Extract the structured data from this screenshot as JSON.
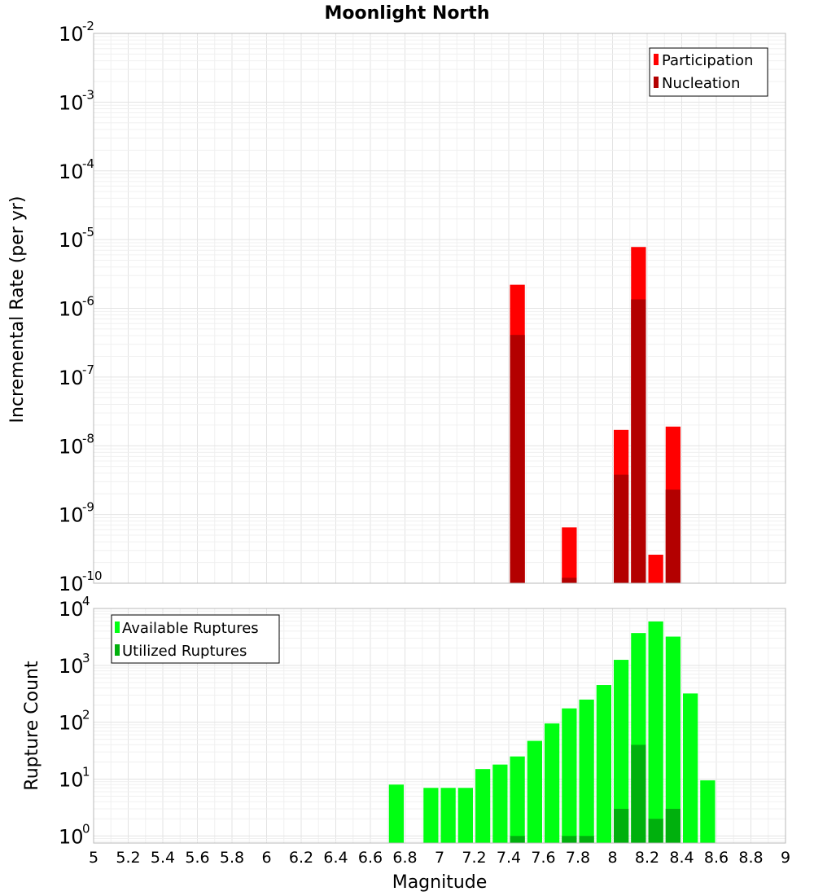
{
  "title": "Moonlight North",
  "x_axis": {
    "label": "Magnitude",
    "tick_labels": [
      "5",
      "5.2",
      "5.4",
      "5.6",
      "5.8",
      "6",
      "6.2",
      "6.4",
      "6.6",
      "6.8",
      "7",
      "7.2",
      "7.4",
      "7.6",
      "7.8",
      "8",
      "8.2",
      "8.4",
      "8.6",
      "8.8",
      "9"
    ],
    "range": [
      5,
      9
    ]
  },
  "colors": {
    "participation": "#ff0000",
    "nucleation": "#b30000",
    "available": "#00ff12",
    "utilized": "#00b00d"
  },
  "chart_data": [
    {
      "type": "bar",
      "title": "Moonlight North",
      "xlabel": "Magnitude",
      "ylabel": "Incremental Rate (per yr)",
      "xlim": [
        5,
        9
      ],
      "ylim": [
        1e-10,
        0.01
      ],
      "yscale": "log",
      "ytick_base": "10",
      "ytick_exponents": [
        "-10",
        "-9",
        "-8",
        "-7",
        "-6",
        "-5",
        "-4",
        "-3",
        "-2"
      ],
      "grid": true,
      "legend_position": "top-right",
      "bin_width": 0.1,
      "series": [
        {
          "name": "Participation",
          "color": "#ff0000",
          "x": [
            7.45,
            7.75,
            8.05,
            8.15,
            8.25,
            8.35
          ],
          "values": [
            2.2e-06,
            6.5e-10,
            1.7e-08,
            7.8e-06,
            2.6e-10,
            1.9e-08
          ]
        },
        {
          "name": "Nucleation",
          "color": "#b30000",
          "x": [
            7.45,
            7.75,
            8.05,
            8.15,
            8.25,
            8.35
          ],
          "values": [
            4.1e-07,
            1.2e-10,
            3.8e-09,
            1.35e-06,
            null,
            2.3e-09
          ]
        }
      ]
    },
    {
      "type": "bar",
      "xlabel": "Magnitude",
      "ylabel": "Rupture Count",
      "xlim": [
        5,
        9
      ],
      "ylim": [
        0.75,
        10000
      ],
      "yscale": "log",
      "ytick_base": "10",
      "ytick_exponents": [
        "0",
        "1",
        "2",
        "3",
        "4"
      ],
      "grid": true,
      "legend_position": "top-left",
      "bin_width": 0.1,
      "series": [
        {
          "name": "Available Ruptures",
          "color": "#00ff12",
          "x": [
            6.75,
            6.95,
            7.05,
            7.15,
            7.25,
            7.35,
            7.45,
            7.55,
            7.65,
            7.75,
            7.85,
            7.95,
            8.05,
            8.15,
            8.25,
            8.35,
            8.45,
            8.55
          ],
          "values": [
            8,
            7,
            7,
            7,
            15,
            18,
            25,
            47,
            95,
            175,
            250,
            450,
            1250,
            3700,
            5900,
            3200,
            320,
            9.5
          ]
        },
        {
          "name": "Utilized Ruptures",
          "color": "#00b00d",
          "x": [
            7.45,
            7.75,
            7.85,
            8.05,
            8.15,
            8.25,
            8.35
          ],
          "values": [
            1,
            1,
            1,
            3,
            40,
            2,
            3
          ]
        }
      ]
    }
  ]
}
